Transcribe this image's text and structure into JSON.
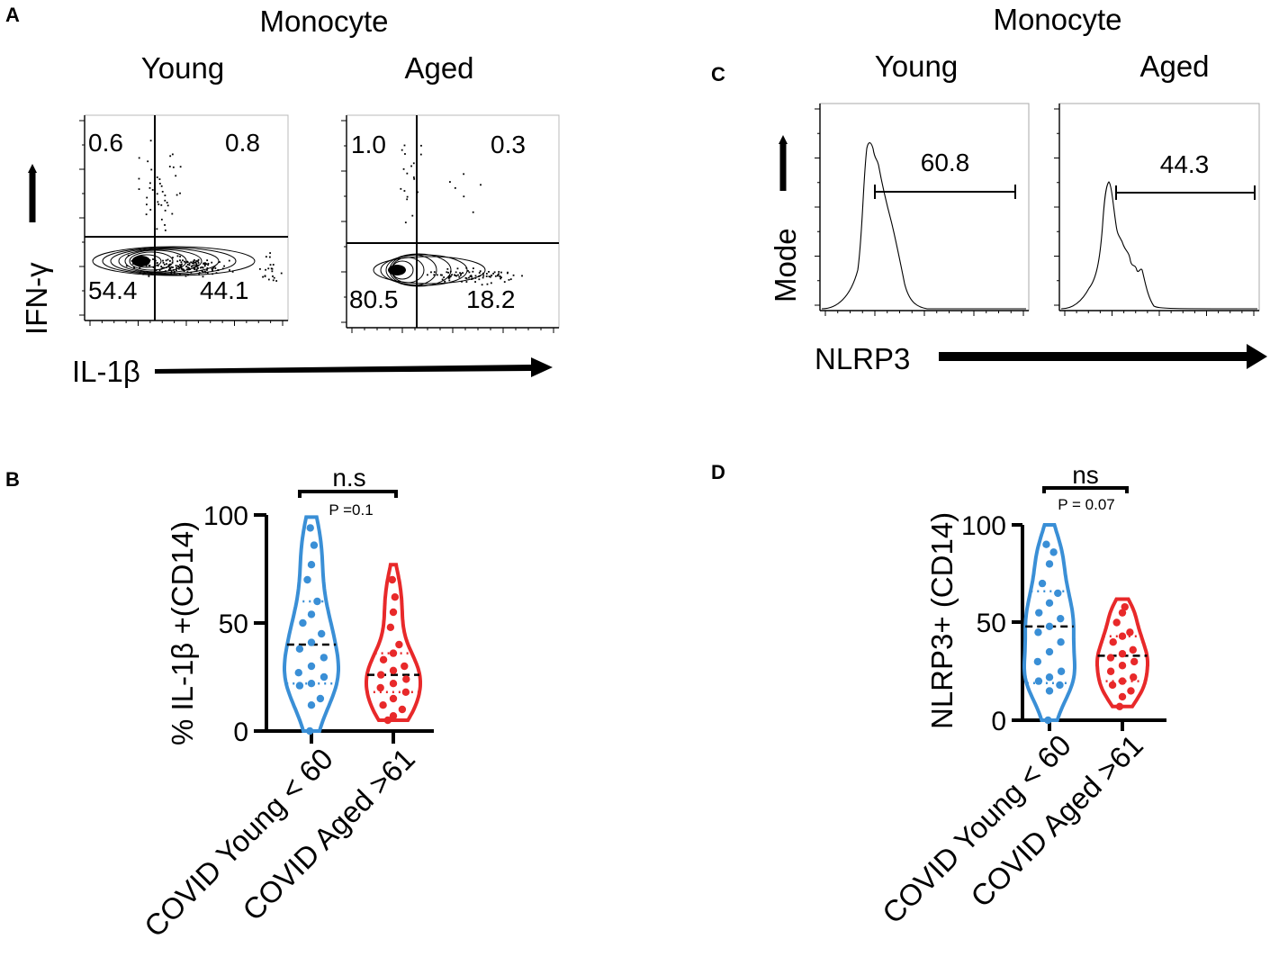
{
  "colors": {
    "young": "#3a8fd6",
    "aged": "#e8292a",
    "ink": "#000000"
  },
  "panels": {
    "A": {
      "label": "A",
      "cell_type": "Monocyte",
      "groups": [
        "Young",
        "Aged"
      ],
      "x_axis": "IL-1β",
      "y_axis": "IFN-γ",
      "quadrants": [
        {
          "group": "Young",
          "ul": "0.6",
          "ur": "0.8",
          "ll": "54.4",
          "lr": "44.1"
        },
        {
          "group": "Aged",
          "ul": "1.0",
          "ur": "0.3",
          "ll": "80.5",
          "lr": "18.2"
        }
      ]
    },
    "C": {
      "label": "C",
      "cell_type": "Monocyte",
      "groups": [
        "Young",
        "Aged"
      ],
      "x_axis": "NLRP3",
      "y_axis": "Mode",
      "gates": [
        {
          "group": "Young",
          "value": "60.8"
        },
        {
          "group": "Aged",
          "value": "44.3"
        }
      ]
    },
    "B": {
      "label": "B"
    },
    "D": {
      "label": "D"
    }
  },
  "chart_data": [
    {
      "panel": "B",
      "type": "violin",
      "ylabel": "% IL-1β +(CD14)",
      "ylim": [
        0,
        100
      ],
      "yticks": [
        "0",
        "50",
        "100"
      ],
      "categories": [
        "COVID Young < 60",
        "COVID Aged >61"
      ],
      "significance": {
        "label": "n.s",
        "p": "P =0.1"
      },
      "series": [
        {
          "name": "COVID Young < 60",
          "color": "young",
          "min": 0,
          "max": 99,
          "q1": 22,
          "median": 40,
          "q3": 60,
          "values": [
            0,
            12,
            15,
            21,
            22,
            25,
            27,
            30,
            34,
            38,
            41,
            45,
            50,
            54,
            60,
            70,
            77,
            86,
            94
          ]
        },
        {
          "name": "COVID Aged >61",
          "color": "aged",
          "min": 5,
          "max": 77,
          "q1": 18,
          "median": 26,
          "q3": 36,
          "values": [
            5,
            7,
            10,
            12,
            15,
            18,
            20,
            22,
            24,
            26,
            28,
            30,
            33,
            36,
            40,
            48,
            55,
            62,
            70
          ]
        }
      ]
    },
    {
      "panel": "D",
      "type": "violin",
      "ylabel": "NLRP3+ (CD14)",
      "ylim": [
        0,
        100
      ],
      "yticks": [
        "0",
        "50",
        "100"
      ],
      "categories": [
        "COVID Young < 60",
        "COVID Aged >61"
      ],
      "significance": {
        "label": "ns",
        "p": "P = 0.07"
      },
      "series": [
        {
          "name": "COVID Young < 60",
          "color": "young",
          "min": 0,
          "max": 100,
          "q1": 19,
          "median": 48,
          "q3": 66,
          "values": [
            0,
            15,
            18,
            20,
            22,
            25,
            30,
            35,
            40,
            45,
            48,
            52,
            55,
            60,
            65,
            70,
            80,
            86,
            90
          ]
        },
        {
          "name": "COVID Aged >61",
          "color": "aged",
          "min": 7,
          "max": 62,
          "q1": 20,
          "median": 33,
          "q3": 43,
          "values": [
            7,
            12,
            15,
            18,
            20,
            22,
            25,
            28,
            30,
            32,
            34,
            36,
            40,
            43,
            45,
            50,
            55,
            58
          ]
        }
      ]
    }
  ]
}
